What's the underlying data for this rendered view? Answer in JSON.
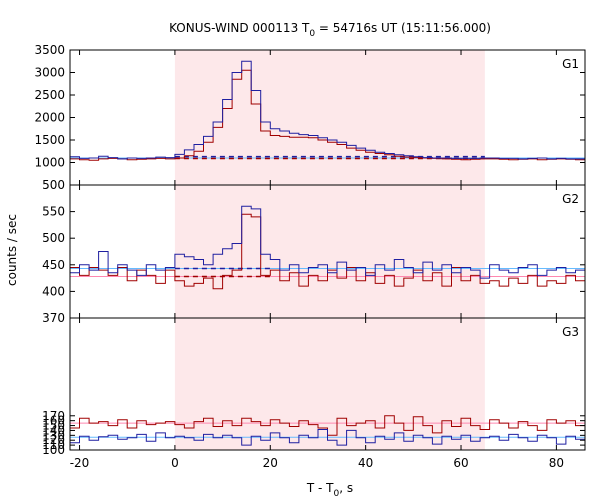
{
  "chart_data": {
    "type": "line",
    "title": "KONUS-WIND 000113 T",
    "title_sub": "0",
    "title_rest": " = 54716s UT (15:11:56.000)",
    "xlabel": "T - T",
    "xlabel_sub": "0",
    "xlabel_rest": ", s",
    "ylabel": "counts / sec",
    "xlim": [
      -22,
      86
    ],
    "xticks": [
      -20,
      0,
      20,
      40,
      60,
      80
    ],
    "xtick_labels": [
      "-20",
      "0",
      "20",
      "40",
      "60",
      "80"
    ],
    "shaded_interval": [
      0,
      65
    ],
    "colors": {
      "shade": "#fde8ea",
      "red": "#a00000",
      "blue": "#1f1fa0",
      "pink": "#ff88b0",
      "lightblue": "#66bbff"
    },
    "panels": [
      {
        "name": "G1",
        "ylim": [
          500,
          3500
        ],
        "yticks": [
          500,
          1000,
          1500,
          2000,
          2500,
          3000,
          3500
        ],
        "ytick_labels": [
          "500",
          "1000",
          "1500",
          "2000",
          "2500",
          "3000",
          "3500"
        ],
        "series": [
          {
            "color": "red",
            "x": [
              -22,
              -20,
              -18,
              -16,
              -14,
              -12,
              -10,
              -8,
              -6,
              -4,
              -2,
              0,
              2,
              4,
              6,
              8,
              10,
              12,
              14,
              16,
              18,
              20,
              22,
              24,
              26,
              28,
              30,
              32,
              34,
              36,
              38,
              40,
              42,
              44,
              46,
              48,
              50,
              52,
              54,
              56,
              58,
              60,
              62,
              64,
              66,
              68,
              70,
              72,
              74,
              76,
              78,
              80,
              82,
              84,
              86
            ],
            "y": [
              1080,
              1060,
              1050,
              1080,
              1090,
              1080,
              1060,
              1070,
              1080,
              1090,
              1080,
              1100,
              1150,
              1250,
              1450,
              1780,
              2200,
              2850,
              3050,
              2300,
              1700,
              1600,
              1580,
              1560,
              1560,
              1550,
              1500,
              1450,
              1400,
              1320,
              1270,
              1230,
              1200,
              1170,
              1140,
              1120,
              1110,
              1100,
              1090,
              1080,
              1070,
              1060,
              1070,
              1080,
              1080,
              1070,
              1060,
              1070,
              1080,
              1060,
              1070,
              1080,
              1070,
              1060,
              1060
            ]
          },
          {
            "color": "blue",
            "x": [
              -22,
              -20,
              -18,
              -16,
              -14,
              -12,
              -10,
              -8,
              -6,
              -4,
              -2,
              0,
              2,
              4,
              6,
              8,
              10,
              12,
              14,
              16,
              18,
              20,
              22,
              24,
              26,
              28,
              30,
              32,
              34,
              36,
              38,
              40,
              42,
              44,
              46,
              48,
              50,
              52,
              54,
              56,
              58,
              60,
              62,
              64,
              66,
              68,
              70,
              72,
              74,
              76,
              78,
              80,
              82,
              84,
              86
            ],
            "y": [
              1130,
              1090,
              1100,
              1140,
              1110,
              1080,
              1100,
              1090,
              1100,
              1120,
              1110,
              1180,
              1280,
              1400,
              1580,
              1900,
              2400,
              3000,
              3250,
              2600,
              1900,
              1750,
              1700,
              1650,
              1620,
              1600,
              1550,
              1500,
              1450,
              1380,
              1320,
              1270,
              1230,
              1200,
              1170,
              1150,
              1130,
              1110,
              1100,
              1100,
              1090,
              1090,
              1090,
              1100,
              1100,
              1090,
              1090,
              1080,
              1090,
              1100,
              1080,
              1090,
              1080,
              1080,
              1080
            ]
          }
        ],
        "fit_lines": [
          {
            "color": "pink",
            "y": 1100,
            "style": "solid"
          },
          {
            "color": "lightblue",
            "y": 1100,
            "style": "solid"
          },
          {
            "color": "red",
            "y": 1090,
            "style": "dashed",
            "x_range": [
              0,
              65
            ]
          },
          {
            "color": "blue",
            "y": 1130,
            "style": "dashed",
            "x_range": [
              0,
              65
            ]
          }
        ]
      },
      {
        "name": "G2",
        "ylim": [
          350,
          600
        ],
        "yticks": [
          400,
          450,
          500,
          550
        ],
        "ytick_labels": [
          "400",
          "450",
          "500",
          "550"
        ],
        "series": [
          {
            "color": "red",
            "x": [
              -22,
              -20,
              -18,
              -16,
              -14,
              -12,
              -10,
              -8,
              -6,
              -4,
              -2,
              0,
              2,
              4,
              6,
              8,
              10,
              12,
              14,
              16,
              18,
              20,
              22,
              24,
              26,
              28,
              30,
              32,
              34,
              36,
              38,
              40,
              42,
              44,
              46,
              48,
              50,
              52,
              54,
              56,
              58,
              60,
              62,
              64,
              66,
              68,
              70,
              72,
              74,
              76,
              78,
              80,
              82,
              84,
              86
            ],
            "y": [
              445,
              430,
              445,
              440,
              430,
              445,
              420,
              440,
              430,
              415,
              440,
              420,
              410,
              415,
              425,
              405,
              430,
              440,
              545,
              540,
              430,
              440,
              420,
              435,
              410,
              430,
              420,
              440,
              425,
              445,
              420,
              435,
              415,
              430,
              410,
              425,
              440,
              420,
              435,
              410,
              445,
              420,
              430,
              415,
              420,
              410,
              425,
              415,
              430,
              410,
              420,
              415,
              430,
              420,
              425
            ]
          },
          {
            "color": "blue",
            "x": [
              -22,
              -20,
              -18,
              -16,
              -14,
              -12,
              -10,
              -8,
              -6,
              -4,
              -2,
              0,
              2,
              4,
              6,
              8,
              10,
              12,
              14,
              16,
              18,
              20,
              22,
              24,
              26,
              28,
              30,
              32,
              34,
              36,
              38,
              40,
              42,
              44,
              46,
              48,
              50,
              52,
              54,
              56,
              58,
              60,
              62,
              64,
              66,
              68,
              70,
              72,
              74,
              76,
              78,
              80,
              82,
              84,
              86
            ],
            "y": [
              435,
              450,
              440,
              475,
              435,
              450,
              440,
              430,
              450,
              440,
              445,
              470,
              465,
              460,
              450,
              470,
              480,
              490,
              560,
              555,
              470,
              460,
              440,
              450,
              435,
              445,
              450,
              435,
              455,
              440,
              445,
              430,
              450,
              440,
              460,
              445,
              435,
              455,
              440,
              450,
              435,
              445,
              440,
              425,
              450,
              440,
              435,
              445,
              450,
              430,
              440,
              445,
              435,
              440,
              450
            ]
          }
        ],
        "fit_lines": [
          {
            "color": "pink",
            "y": 428,
            "style": "solid"
          },
          {
            "color": "lightblue",
            "y": 443,
            "style": "solid"
          },
          {
            "color": "red",
            "y": 428,
            "style": "dashed",
            "x_range": [
              0,
              20
            ]
          },
          {
            "color": "blue",
            "y": 443,
            "style": "dashed",
            "x_range": [
              0,
              20
            ]
          }
        ]
      },
      {
        "name": "G3",
        "ylim": [
          100,
          370
        ],
        "yticks": [
          100,
          110,
          120,
          130,
          140,
          150,
          160,
          170
        ],
        "ytick_labels": [
          "100",
          "110",
          "120",
          "130",
          "140",
          "150",
          "160",
          "170"
        ],
        "extra_ytick_labels": [
          {
            "value": 370,
            "label": "370"
          }
        ],
        "series": [
          {
            "color": "red",
            "x": [
              -22,
              -20,
              -18,
              -16,
              -14,
              -12,
              -10,
              -8,
              -6,
              -4,
              -2,
              0,
              2,
              4,
              6,
              8,
              10,
              12,
              14,
              16,
              18,
              20,
              22,
              24,
              26,
              28,
              30,
              32,
              34,
              36,
              38,
              40,
              42,
              44,
              46,
              48,
              50,
              52,
              54,
              56,
              58,
              60,
              62,
              64,
              66,
              68,
              70,
              72,
              74,
              76,
              78,
              80,
              82,
              84,
              86
            ],
            "y": [
              145,
              165,
              155,
              158,
              150,
              162,
              145,
              160,
              152,
              155,
              158,
              152,
              145,
              158,
              165,
              148,
              160,
              150,
              165,
              158,
              150,
              162,
              155,
              148,
              160,
              152,
              145,
              130,
              165,
              150,
              155,
              160,
              145,
              170,
              155,
              140,
              168,
              150,
              135,
              160,
              148,
              165,
              150,
              142,
              162,
              155,
              145,
              158,
              150,
              140,
              162,
              155,
              160,
              150,
              155
            ]
          },
          {
            "color": "blue",
            "x": [
              -22,
              -20,
              -18,
              -16,
              -14,
              -12,
              -10,
              -8,
              -6,
              -4,
              -2,
              0,
              2,
              4,
              6,
              8,
              10,
              12,
              14,
              16,
              18,
              20,
              22,
              24,
              26,
              28,
              30,
              32,
              34,
              36,
              38,
              40,
              42,
              44,
              46,
              48,
              50,
              52,
              54,
              56,
              58,
              60,
              62,
              64,
              66,
              68,
              70,
              72,
              74,
              76,
              78,
              80,
              82,
              84,
              86
            ],
            "y": [
              115,
              128,
              120,
              127,
              130,
              122,
              125,
              132,
              118,
              135,
              125,
              128,
              125,
              120,
              132,
              125,
              130,
              125,
              110,
              128,
              120,
              135,
              125,
              115,
              130,
              125,
              142,
              120,
              110,
              140,
              125,
              115,
              128,
              122,
              135,
              118,
              130,
              125,
              112,
              128,
              122,
              130,
              118,
              125,
              128,
              120,
              132,
              125,
              118,
              130,
              125,
              112,
              128,
              122,
              130
            ]
          }
        ],
        "fit_lines": [
          {
            "color": "pink",
            "y": 155,
            "style": "solid"
          },
          {
            "color": "lightblue",
            "y": 126,
            "style": "solid"
          }
        ]
      }
    ]
  }
}
